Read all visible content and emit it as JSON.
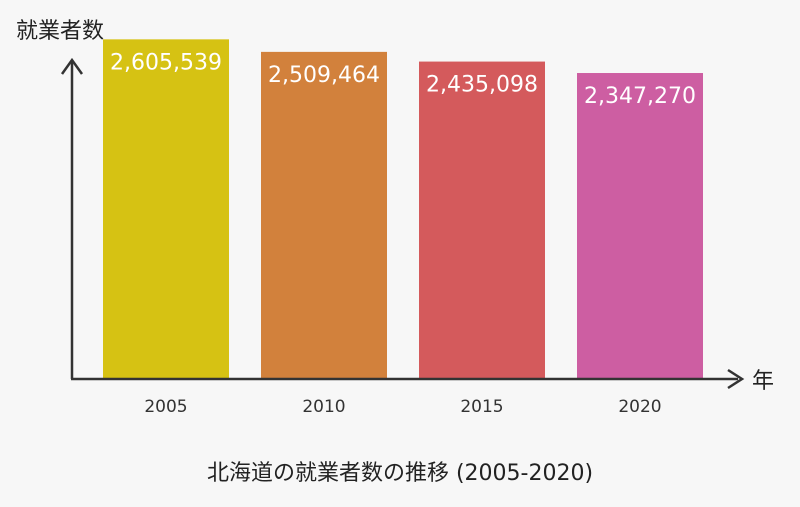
{
  "chart_data": {
    "type": "bar",
    "title": "北海道の就業者数の推移 (2005-2020)",
    "ylabel": "就業者数",
    "xlabel": "年",
    "categories": [
      "2005",
      "2010",
      "2015",
      "2020"
    ],
    "values": [
      2605539,
      2509464,
      2435098,
      2347270
    ],
    "value_labels": [
      "2,605,539",
      "2,509,464",
      "2,435,098",
      "2,347,270"
    ],
    "colors": [
      "#d6c213",
      "#d2813c",
      "#d45a5c",
      "#cd5ea2"
    ],
    "ylim": [
      0,
      2800000
    ],
    "grid": false,
    "legend": "none"
  }
}
